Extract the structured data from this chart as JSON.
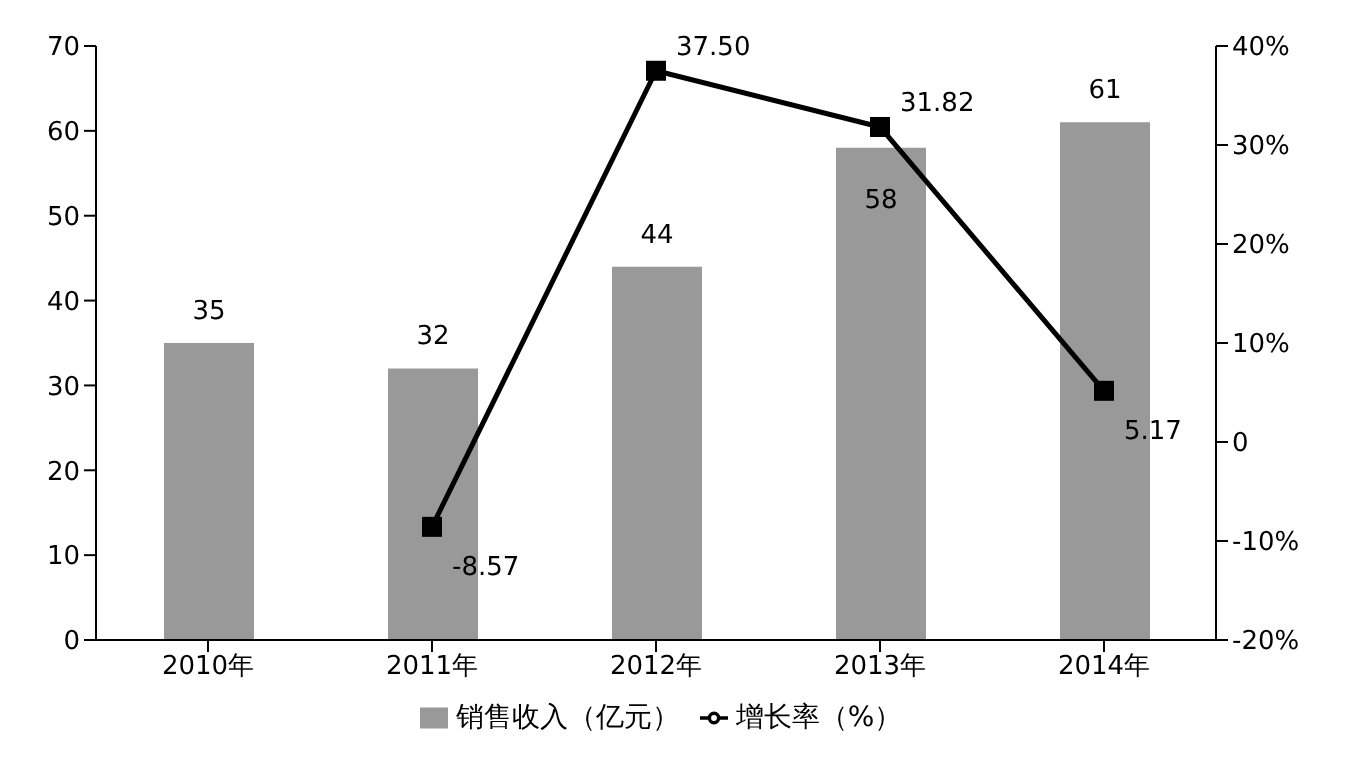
{
  "chart_data": {
    "type": "bar",
    "categories": [
      "2010年",
      "2011年",
      "2012年",
      "2013年",
      "2014年"
    ],
    "series": [
      {
        "name": "销售收入（亿元）",
        "color": "#999999",
        "values": [
          35,
          32,
          44,
          58,
          61
        ]
      },
      {
        "name": "增长率（%）",
        "type": "line",
        "axis": "y2",
        "color": "#000000",
        "values": [
          null,
          -8.57,
          37.5,
          31.82,
          5.17
        ],
        "value_labels": [
          null,
          "-8.57",
          "37.50",
          "31.82",
          "5.17"
        ]
      }
    ],
    "ylim": [
      0,
      70
    ],
    "yticks": [
      0,
      10,
      20,
      30,
      40,
      50,
      60,
      70
    ],
    "y2lim": [
      -20,
      40
    ],
    "y2ticks": [
      {
        "value": -20,
        "label": "-20%"
      },
      {
        "value": -10,
        "label": "-10%"
      },
      {
        "value": 0,
        "label": "0"
      },
      {
        "value": 10,
        "label": "10%"
      },
      {
        "value": 20,
        "label": "20%"
      },
      {
        "value": 30,
        "label": "30%"
      },
      {
        "value": 40,
        "label": "40%"
      }
    ],
    "data_labels": true,
    "marker": "square",
    "legend": "bottom",
    "grid": false
  }
}
